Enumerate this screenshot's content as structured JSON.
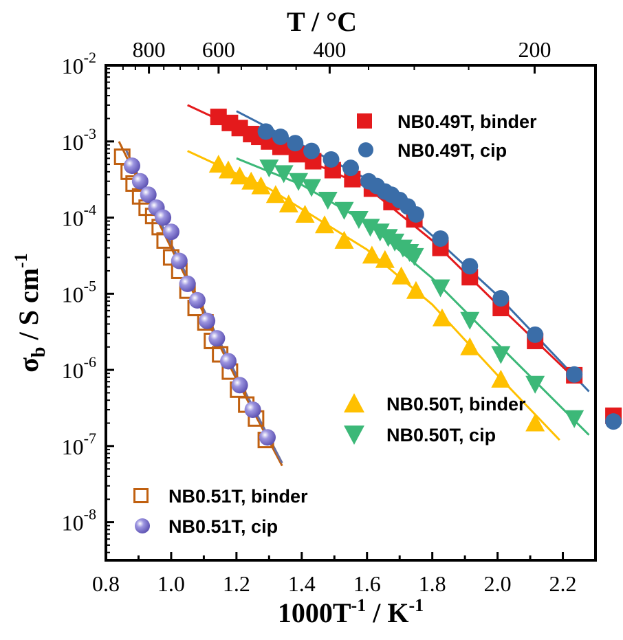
{
  "chart_data": {
    "type": "scatter",
    "xlabel_main": "1000T",
    "xlabel_sup1": "-1",
    "xlabel_mid": " / K",
    "xlabel_sup2": "-1",
    "ylabel_main": "σ",
    "ylabel_sub": "b",
    "ylabel_mid": " / S cm",
    "ylabel_sup": "-1",
    "top_label": "T / °C",
    "y_scale": "log",
    "xlim": [
      0.8,
      2.3
    ],
    "ylim_exp": [
      -8.5,
      -2
    ],
    "x_ticks": [
      0.8,
      1.0,
      1.2,
      1.4,
      1.6,
      1.8,
      2.0,
      2.2
    ],
    "x_tick_labels": [
      "0.8",
      "1.0",
      "1.2",
      "1.4",
      "1.6",
      "1.8",
      "2.0",
      "2.2"
    ],
    "y_tick_exponents": [
      -8,
      -7,
      -6,
      -5,
      -4,
      -3,
      -2
    ],
    "y_tick_base": "10",
    "y_tick_sups": [
      "-8",
      "-7",
      "-6",
      "-5",
      "-4",
      "-3",
      "-2"
    ],
    "top_ticks_celsius": [
      800,
      600,
      400,
      200
    ],
    "top_tick_labels": [
      "800",
      "600",
      "400",
      "200"
    ],
    "series": [
      {
        "name": "NB0.49T, binder",
        "marker": "square",
        "color": "#e41a1c",
        "fit_color": "#e41a1c",
        "points": [
          [
            1.145,
            0.0021
          ],
          [
            1.18,
            0.00175
          ],
          [
            1.21,
            0.0015
          ],
          [
            1.245,
            0.00125
          ],
          [
            1.27,
            0.00115
          ],
          [
            1.3,
            0.001
          ],
          [
            1.335,
            0.00085
          ],
          [
            1.385,
            0.00068
          ],
          [
            1.435,
            0.00055
          ],
          [
            1.495,
            0.00042
          ],
          [
            1.555,
            0.00032
          ],
          [
            1.615,
            0.00024
          ],
          [
            1.675,
            0.00016
          ],
          [
            1.745,
            9.5e-05
          ],
          [
            1.825,
            4e-05
          ],
          [
            1.915,
            1.65e-05
          ],
          [
            2.01,
            6.5e-06
          ],
          [
            2.115,
            2.4e-06
          ],
          [
            2.235,
            8.5e-07
          ],
          [
            2.355,
            2.5e-07
          ]
        ],
        "fit": [
          [
            1.05,
            0.003
          ],
          [
            1.3,
            0.00095
          ],
          [
            1.6,
            0.00025
          ],
          [
            1.8,
            5e-05
          ],
          [
            2.0,
            7.2e-06
          ],
          [
            2.24,
            7.5e-07
          ]
        ]
      },
      {
        "name": "NB0.49T, cip",
        "marker": "circle",
        "color": "#3a6da8",
        "fit_color": "#3a6da8",
        "points": [
          [
            1.29,
            0.00135
          ],
          [
            1.335,
            0.00115
          ],
          [
            1.38,
            0.00095
          ],
          [
            1.43,
            0.00075
          ],
          [
            1.49,
            0.00058
          ],
          [
            1.55,
            0.00045
          ],
          [
            1.605,
            0.0003
          ],
          [
            1.63,
            0.00026
          ],
          [
            1.655,
            0.00022
          ],
          [
            1.675,
            0.0002
          ],
          [
            1.7,
            0.00017
          ],
          [
            1.725,
            0.00014
          ],
          [
            1.75,
            0.00011
          ],
          [
            1.825,
            5.3e-05
          ],
          [
            1.915,
            2.3e-05
          ],
          [
            2.01,
            8.7e-06
          ],
          [
            2.115,
            2.9e-06
          ],
          [
            2.235,
            8.7e-07
          ],
          [
            2.355,
            2.1e-07
          ]
        ],
        "fit": [
          [
            1.2,
            0.0025
          ],
          [
            1.4,
            0.0009
          ],
          [
            1.6,
            0.00032
          ],
          [
            1.8,
            5.8e-05
          ],
          [
            2.0,
            9.5e-06
          ],
          [
            2.28,
            5.2e-07
          ]
        ]
      },
      {
        "name": "NB0.50T, binder",
        "marker": "triangle-up",
        "color": "#ffc000",
        "fit_color": "#ffc000",
        "points": [
          [
            1.145,
            0.0005
          ],
          [
            1.175,
            0.00042
          ],
          [
            1.21,
            0.00035
          ],
          [
            1.245,
            0.0003
          ],
          [
            1.275,
            0.00026
          ],
          [
            1.32,
            0.0002
          ],
          [
            1.36,
            0.00015
          ],
          [
            1.41,
            0.00011
          ],
          [
            1.47,
            8e-05
          ],
          [
            1.53,
            5e-05
          ],
          [
            1.615,
            3.2e-05
          ],
          [
            1.655,
            2.8e-05
          ],
          [
            1.705,
            1.7e-05
          ],
          [
            1.75,
            1.1e-05
          ],
          [
            1.83,
            4.8e-06
          ],
          [
            1.915,
            2e-06
          ],
          [
            2.01,
            7.5e-07
          ],
          [
            2.115,
            2e-07
          ]
        ],
        "fit": [
          [
            1.05,
            0.00075
          ],
          [
            1.3,
            0.00024
          ],
          [
            1.6,
            3.8e-05
          ],
          [
            1.8,
            7.2e-06
          ],
          [
            2.0,
            8.5e-07
          ],
          [
            2.19,
            1.2e-07
          ]
        ]
      },
      {
        "name": "NB0.50T, cip",
        "marker": "triangle-down",
        "color": "#3cb878",
        "fit_color": "#3cb878",
        "points": [
          [
            1.3,
            0.00045
          ],
          [
            1.345,
            0.00038
          ],
          [
            1.39,
            0.0003
          ],
          [
            1.43,
            0.00025
          ],
          [
            1.48,
            0.00017
          ],
          [
            1.53,
            0.000125
          ],
          [
            1.575,
            9.5e-05
          ],
          [
            1.61,
            7.5e-05
          ],
          [
            1.64,
            6.5e-05
          ],
          [
            1.665,
            5.5e-05
          ],
          [
            1.685,
            4.8e-05
          ],
          [
            1.71,
            4e-05
          ],
          [
            1.73,
            3.5e-05
          ],
          [
            1.745,
            3.1e-05
          ],
          [
            1.825,
            1.2e-05
          ],
          [
            1.915,
            4.5e-06
          ],
          [
            2.01,
            1.6e-06
          ],
          [
            2.115,
            6.5e-07
          ],
          [
            2.235,
            2.3e-07
          ]
        ],
        "fit": [
          [
            1.2,
            0.0006
          ],
          [
            1.4,
            0.00027
          ],
          [
            1.6,
            8.5e-05
          ],
          [
            1.8,
            1.6e-05
          ],
          [
            2.0,
            2.2e-06
          ],
          [
            2.28,
            1.4e-07
          ]
        ]
      },
      {
        "name": "NB0.51T, binder",
        "marker": "square-open",
        "color": "#c06010",
        "fit_color": "#c06010",
        "points": [
          [
            0.85,
            0.00063
          ],
          [
            0.87,
            0.0004
          ],
          [
            0.885,
            0.00028
          ],
          [
            0.905,
            0.00019
          ],
          [
            0.925,
            0.000135
          ],
          [
            0.945,
            0.000105
          ],
          [
            0.965,
            7.5e-05
          ],
          [
            0.98,
            5e-05
          ],
          [
            1.0,
            3e-05
          ],
          [
            1.025,
            2e-05
          ],
          [
            1.05,
            1.1e-05
          ],
          [
            1.075,
            6.5e-06
          ],
          [
            1.105,
            4.2e-06
          ],
          [
            1.125,
            2.4e-06
          ],
          [
            1.15,
            1.6e-06
          ],
          [
            1.18,
            9.5e-07
          ],
          [
            1.205,
            5.5e-07
          ],
          [
            1.23,
            3.5e-07
          ],
          [
            1.26,
            2.3e-07
          ],
          [
            1.29,
            1.2e-07
          ]
        ],
        "fit": [
          [
            0.84,
            0.001
          ],
          [
            1.0,
            4e-05
          ],
          [
            1.2,
            7.5e-07
          ],
          [
            1.34,
            5.5e-08
          ]
        ]
      },
      {
        "name": "NB0.51T, cip",
        "marker": "sphere",
        "color": "#7b6fc8",
        "fit_color": "#6a6fa0",
        "points": [
          [
            0.88,
            0.00048
          ],
          [
            0.905,
            0.0003
          ],
          [
            0.93,
            0.0002
          ],
          [
            0.955,
            0.000135
          ],
          [
            0.975,
            0.0001
          ],
          [
            1.0,
            6.5e-05
          ],
          [
            1.025,
            2.7e-05
          ],
          [
            1.05,
            1.35e-05
          ],
          [
            1.08,
            8.2e-06
          ],
          [
            1.11,
            4.4e-06
          ],
          [
            1.14,
            2.6e-06
          ],
          [
            1.175,
            1.3e-06
          ],
          [
            1.21,
            6.3e-07
          ],
          [
            1.25,
            3e-07
          ],
          [
            1.295,
            1.3e-07
          ]
        ],
        "fit": [
          [
            0.86,
            0.0008
          ],
          [
            1.0,
            4.5e-05
          ],
          [
            1.2,
            8.5e-07
          ],
          [
            1.34,
            6e-08
          ]
        ]
      }
    ],
    "legend_upper": [
      "NB0.49T, binder",
      "NB0.49T, cip"
    ],
    "legend_middle": [
      "NB0.50T, binder",
      "NB0.50T, cip"
    ],
    "legend_lower": [
      "NB0.51T, binder",
      "NB0.51T, cip"
    ]
  }
}
